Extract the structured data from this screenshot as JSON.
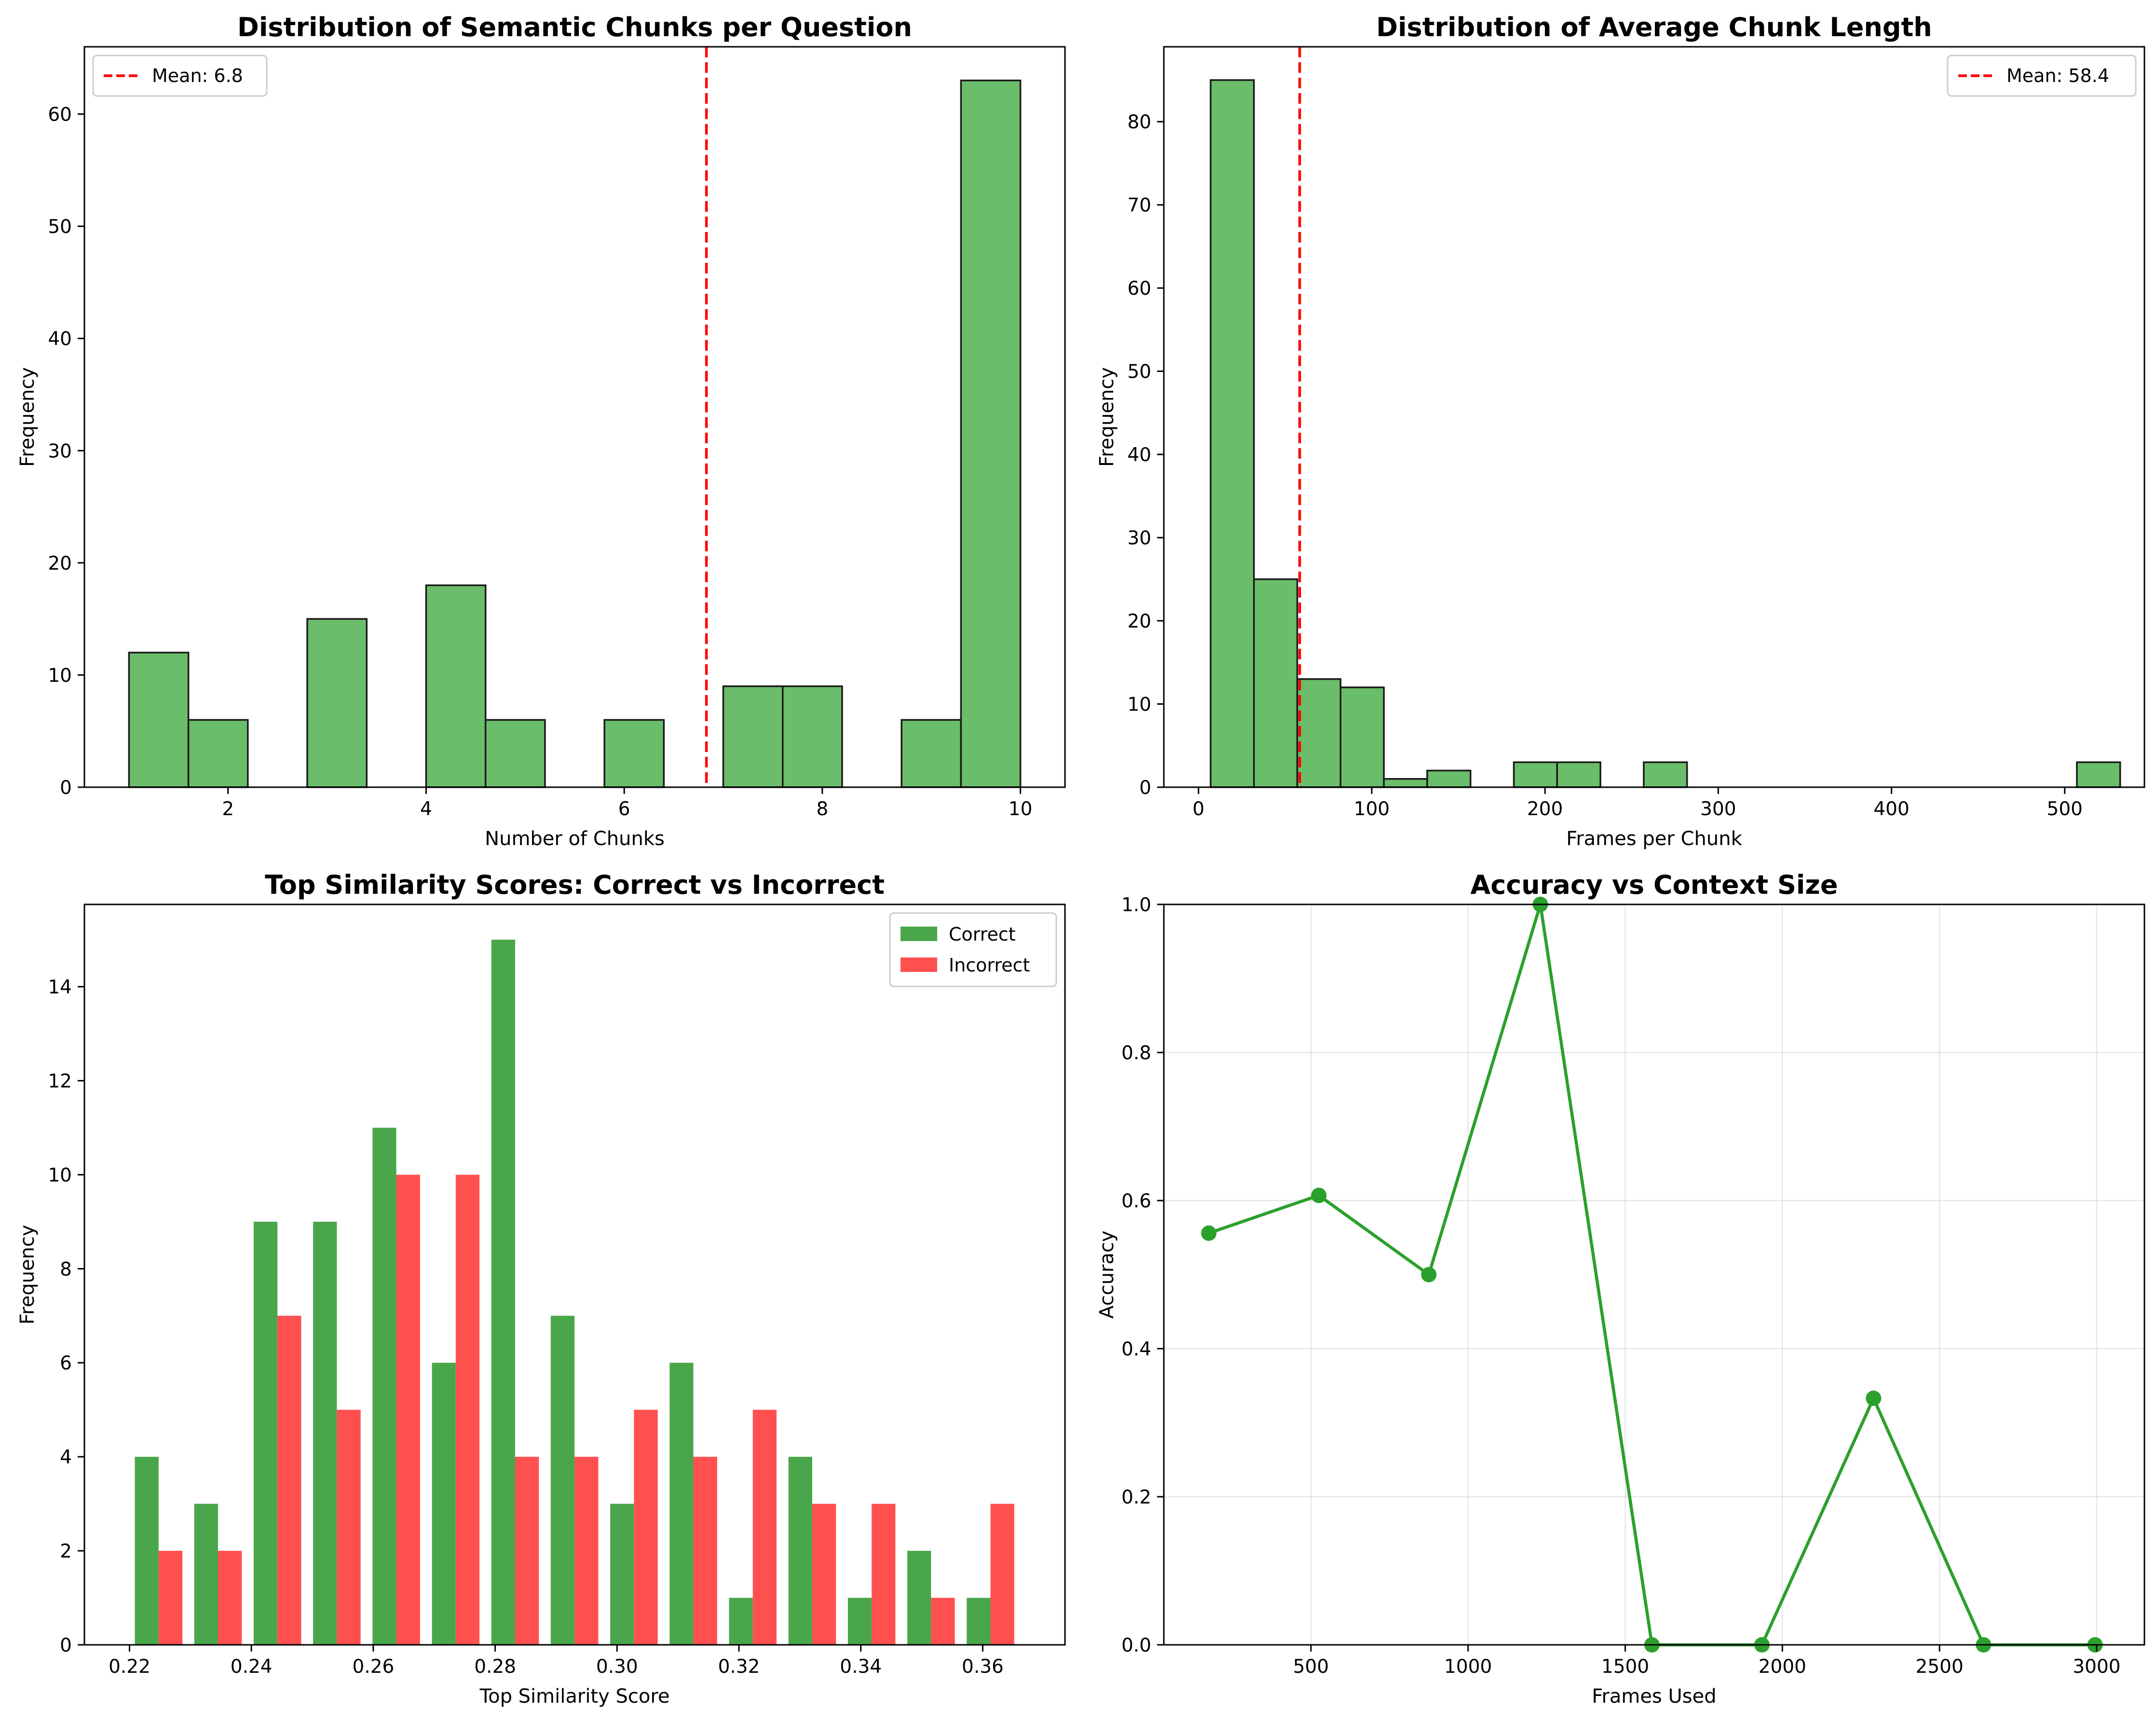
{
  "chart_data": [
    {
      "type": "bar",
      "title": "Distribution of Semantic Chunks per Question",
      "xlabel": "Number of Chunks",
      "ylabel": "Frequency",
      "xlim": [
        0.55,
        10.45
      ],
      "ylim": [
        0,
        66
      ],
      "xticks": [
        2,
        4,
        6,
        8,
        10
      ],
      "yticks": [
        0,
        10,
        20,
        30,
        40,
        50,
        60
      ],
      "bins": [
        {
          "x0": 1.0,
          "x1": 1.6,
          "value": 12
        },
        {
          "x0": 1.6,
          "x1": 2.2,
          "value": 6
        },
        {
          "x0": 2.2,
          "x1": 2.8,
          "value": 0
        },
        {
          "x0": 2.8,
          "x1": 3.4,
          "value": 15
        },
        {
          "x0": 3.4,
          "x1": 4.0,
          "value": 0
        },
        {
          "x0": 4.0,
          "x1": 4.6,
          "value": 18
        },
        {
          "x0": 4.6,
          "x1": 5.2,
          "value": 6
        },
        {
          "x0": 5.2,
          "x1": 5.8,
          "value": 0
        },
        {
          "x0": 5.8,
          "x1": 6.4,
          "value": 6
        },
        {
          "x0": 6.4,
          "x1": 7.0,
          "value": 0
        },
        {
          "x0": 7.0,
          "x1": 7.6,
          "value": 9
        },
        {
          "x0": 7.6,
          "x1": 8.2,
          "value": 9
        },
        {
          "x0": 8.2,
          "x1": 8.8,
          "value": 0
        },
        {
          "x0": 8.8,
          "x1": 9.4,
          "value": 6
        },
        {
          "x0": 9.4,
          "x1": 10.0,
          "value": 63
        }
      ],
      "mean_line": {
        "value": 6.83,
        "legend": "Mean: 6.8",
        "color": "#ff0000"
      },
      "bar_color": "#6abd6a",
      "legend_placement": "upper-left",
      "grid": false
    },
    {
      "type": "bar",
      "title": "Distribution of Average Chunk Length",
      "xlabel": "Frames per Chunk",
      "ylabel": "Frequency",
      "xlim": [
        -20,
        546
      ],
      "ylim": [
        0,
        89
      ],
      "xticks": [
        0,
        100,
        200,
        300,
        400,
        500
      ],
      "yticks": [
        0,
        10,
        20,
        30,
        40,
        50,
        60,
        70,
        80
      ],
      "bins": [
        {
          "x0": 7.0,
          "x1": 32.0,
          "value": 85
        },
        {
          "x0": 32.0,
          "x1": 57.0,
          "value": 25
        },
        {
          "x0": 57.0,
          "x1": 82.0,
          "value": 13
        },
        {
          "x0": 82.0,
          "x1": 107.0,
          "value": 12
        },
        {
          "x0": 107.0,
          "x1": 132.0,
          "value": 1
        },
        {
          "x0": 132.0,
          "x1": 157.0,
          "value": 2
        },
        {
          "x0": 157.0,
          "x1": 182.0,
          "value": 0
        },
        {
          "x0": 182.0,
          "x1": 207.0,
          "value": 3
        },
        {
          "x0": 207.0,
          "x1": 232.0,
          "value": 3
        },
        {
          "x0": 232.0,
          "x1": 257.0,
          "value": 0
        },
        {
          "x0": 257.0,
          "x1": 282.0,
          "value": 3
        },
        {
          "x0": 282.0,
          "x1": 307.0,
          "value": 0
        },
        {
          "x0": 307.0,
          "x1": 332.0,
          "value": 0
        },
        {
          "x0": 332.0,
          "x1": 357.0,
          "value": 0
        },
        {
          "x0": 357.0,
          "x1": 382.0,
          "value": 0
        },
        {
          "x0": 382.0,
          "x1": 407.0,
          "value": 0
        },
        {
          "x0": 407.0,
          "x1": 432.0,
          "value": 0
        },
        {
          "x0": 432.0,
          "x1": 457.0,
          "value": 0
        },
        {
          "x0": 457.0,
          "x1": 482.0,
          "value": 0
        },
        {
          "x0": 482.0,
          "x1": 507.0,
          "value": 0
        },
        {
          "x0": 507.0,
          "x1": 532.0,
          "value": 3
        }
      ],
      "mean_line": {
        "value": 58.4,
        "legend": "Mean: 58.4",
        "color": "#ff0000"
      },
      "bar_color": "#6abd6a",
      "legend_placement": "upper-right",
      "grid": false
    },
    {
      "type": "bar",
      "title": "Top Similarity Scores: Correct vs Incorrect",
      "xlabel": "Top Similarity Score",
      "ylabel": "Frequency",
      "xlim": [
        0.2126,
        0.3735
      ],
      "ylim": [
        0,
        15.75
      ],
      "xticks": [
        0.22,
        0.24,
        0.26,
        0.28,
        0.3,
        0.32,
        0.34,
        0.36
      ],
      "xtick_labels": [
        "0.22",
        "0.24",
        "0.26",
        "0.28",
        "0.30",
        "0.32",
        "0.34",
        "0.36"
      ],
      "yticks": [
        0,
        2,
        4,
        6,
        8,
        10,
        12,
        14
      ],
      "bin_start": 0.2199,
      "bin_width": 0.00975,
      "series": [
        {
          "name": "Correct",
          "color": "#4aa64a",
          "values": [
            4,
            3,
            9,
            9,
            11,
            6,
            15,
            7,
            3,
            6,
            1,
            4,
            1,
            2,
            1
          ]
        },
        {
          "name": "Incorrect",
          "color": "#ff5050",
          "values": [
            2,
            2,
            7,
            5,
            10,
            10,
            4,
            4,
            5,
            4,
            5,
            3,
            3,
            1,
            3
          ]
        }
      ],
      "legend_placement": "upper-right",
      "grid": false
    },
    {
      "type": "line",
      "title": "Accuracy vs Context Size",
      "xlabel": "Frames Used",
      "ylabel": "Accuracy",
      "xlim": [
        32,
        3152
      ],
      "ylim": [
        0,
        1.0
      ],
      "xticks": [
        500,
        1000,
        1500,
        2000,
        2500,
        3000
      ],
      "yticks": [
        0.0,
        0.2,
        0.4,
        0.6,
        0.8,
        1.0
      ],
      "ytick_labels": [
        "0.0",
        "0.2",
        "0.4",
        "0.6",
        "0.8",
        "1.0"
      ],
      "x": [
        175,
        525,
        875,
        1230,
        1585,
        1935,
        2290,
        2640,
        2995
      ],
      "y": [
        0.556,
        0.607,
        0.5,
        1.0,
        0.0,
        0.0,
        0.333,
        0.0,
        0.0
      ],
      "line_color": "#2ca02c",
      "grid": true
    }
  ]
}
